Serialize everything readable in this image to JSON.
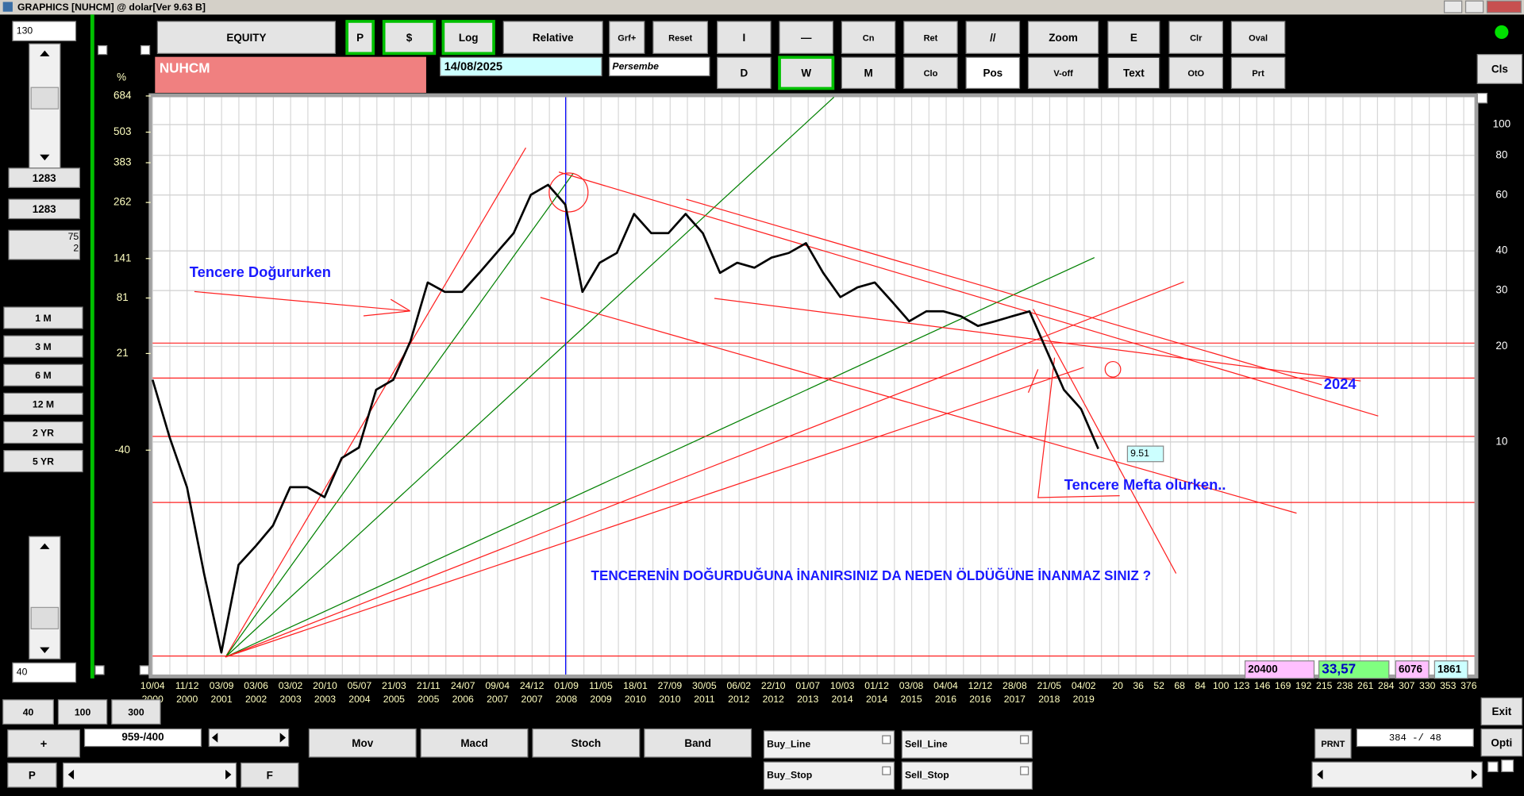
{
  "window_title": "GRAPHICS  [NUHCM] @ dolar[Ver 9.63 B]",
  "toolbar": {
    "row1": [
      "EQUITY",
      "P",
      "$",
      "Log",
      "Relative",
      "Grf+",
      "Reset",
      "I",
      "—",
      "Cn",
      "Ret",
      "//",
      "Zoom",
      "E",
      "Clr",
      "Oval"
    ],
    "row2": [
      "D",
      "W",
      "M",
      "Clo",
      "Pos",
      "V-off",
      "Text",
      "OtO",
      "Prt"
    ],
    "close": "Cls"
  },
  "symbol": "NUHCM",
  "date": "14/08/2025",
  "weekday": "Persembe",
  "left_panel": {
    "top_input": "130",
    "counter_1": "1283",
    "counter_2": "1283",
    "info_1": "75",
    "info_2": "2",
    "periods": [
      "1 M",
      "3 M",
      "6 M",
      "12 M",
      "2 YR",
      "5 YR"
    ],
    "bottom_input": "40"
  },
  "chart_data": {
    "type": "line",
    "color": "#000000",
    "log_scale": true,
    "grid": true,
    "ylim": [
      2.1,
      122
    ],
    "yticks": [
      10,
      20,
      30,
      40,
      60,
      80,
      100
    ],
    "pct_unit": "%",
    "pct_ticks": [
      684,
      503,
      383,
      262,
      141,
      81,
      21,
      -40
    ],
    "values": [
      15.7,
      10.3,
      7.2,
      3.83,
      2.17,
      4.1,
      4.7,
      5.45,
      7.2,
      7.2,
      6.7,
      8.9,
      9.6,
      14.6,
      15.7,
      20.8,
      31.8,
      29.7,
      29.7,
      34.1,
      39.4,
      45.5,
      60.1,
      64.6,
      56,
      29.7,
      36.7,
      39.4,
      52.3,
      45.5,
      45.5,
      52.3,
      45.5,
      34.1,
      36.7,
      35.4,
      38.1,
      39.4,
      42.3,
      34.1,
      28.6,
      30.7,
      31.8,
      27.7,
      24,
      25.8,
      25.8,
      24.9,
      23.2,
      24,
      24.9,
      25.8,
      19.4,
      14.6,
      12.7,
      9.51
    ],
    "date_axis": [
      {
        "date": "10/04",
        "year": "2000"
      },
      {
        "date": "11/12",
        "year": "2000"
      },
      {
        "date": "03/09",
        "year": "2001"
      },
      {
        "date": "03/06",
        "year": "2002"
      },
      {
        "date": "03/02",
        "year": "2003"
      },
      {
        "date": "20/10",
        "year": "2003"
      },
      {
        "date": "05/07",
        "year": "2004"
      },
      {
        "date": "21/03",
        "year": "2005"
      },
      {
        "date": "21/11",
        "year": "2005"
      },
      {
        "date": "24/07",
        "year": "2006"
      },
      {
        "date": "09/04",
        "year": "2007"
      },
      {
        "date": "24/12",
        "year": "2007"
      },
      {
        "date": "01/09",
        "year": "2008"
      },
      {
        "date": "11/05",
        "year": "2009"
      },
      {
        "date": "18/01",
        "year": "2010"
      },
      {
        "date": "27/09",
        "year": "2010"
      },
      {
        "date": "30/05",
        "year": "2011"
      },
      {
        "date": "06/02",
        "year": "2012"
      },
      {
        "date": "22/10",
        "year": "2012"
      },
      {
        "date": "01/07",
        "year": "2013"
      },
      {
        "date": "10/03",
        "year": "2014"
      },
      {
        "date": "01/12",
        "year": "2014"
      },
      {
        "date": "03/08",
        "year": "2015"
      },
      {
        "date": "04/04",
        "year": "2016"
      },
      {
        "date": "12/12",
        "year": "2016"
      },
      {
        "date": "28/08",
        "year": "2017"
      },
      {
        "date": "21/05",
        "year": "2018"
      },
      {
        "date": "04/02",
        "year": "2019"
      }
    ],
    "bar_count_labels": [
      "20",
      "36",
      "52",
      "68",
      "84",
      "100",
      "123",
      "146",
      "169",
      "192",
      "215",
      "238",
      "261",
      "284",
      "307",
      "330",
      "353",
      "376"
    ],
    "annotations": [
      "Tencere Doğururken",
      "2024",
      "Tencere Mefta olurken..",
      "TENCERENİN   DOĞURDUĞUNA  İNANIRSINIZ DA   NEDEN  ÖLDÜĞÜNE  İNANMAZ SINIZ ?"
    ]
  },
  "status": {
    "volume": "20400",
    "price": "33,57",
    "field_1": "6076",
    "field_2": "1861"
  },
  "bottom": {
    "zoom": [
      "40",
      "100",
      "300"
    ],
    "plus": "+",
    "range": "959-/400",
    "p": "P",
    "f": "F",
    "indicators": [
      "Mov",
      "Macd",
      "Stoch",
      "Band"
    ],
    "orders": [
      "Buy_Line",
      "Sell_Line",
      "Buy_Stop",
      "Sell_Stop"
    ],
    "print": "PRNT",
    "position": "384 -/ 48",
    "exit": "Exit",
    "options": "Opti"
  }
}
